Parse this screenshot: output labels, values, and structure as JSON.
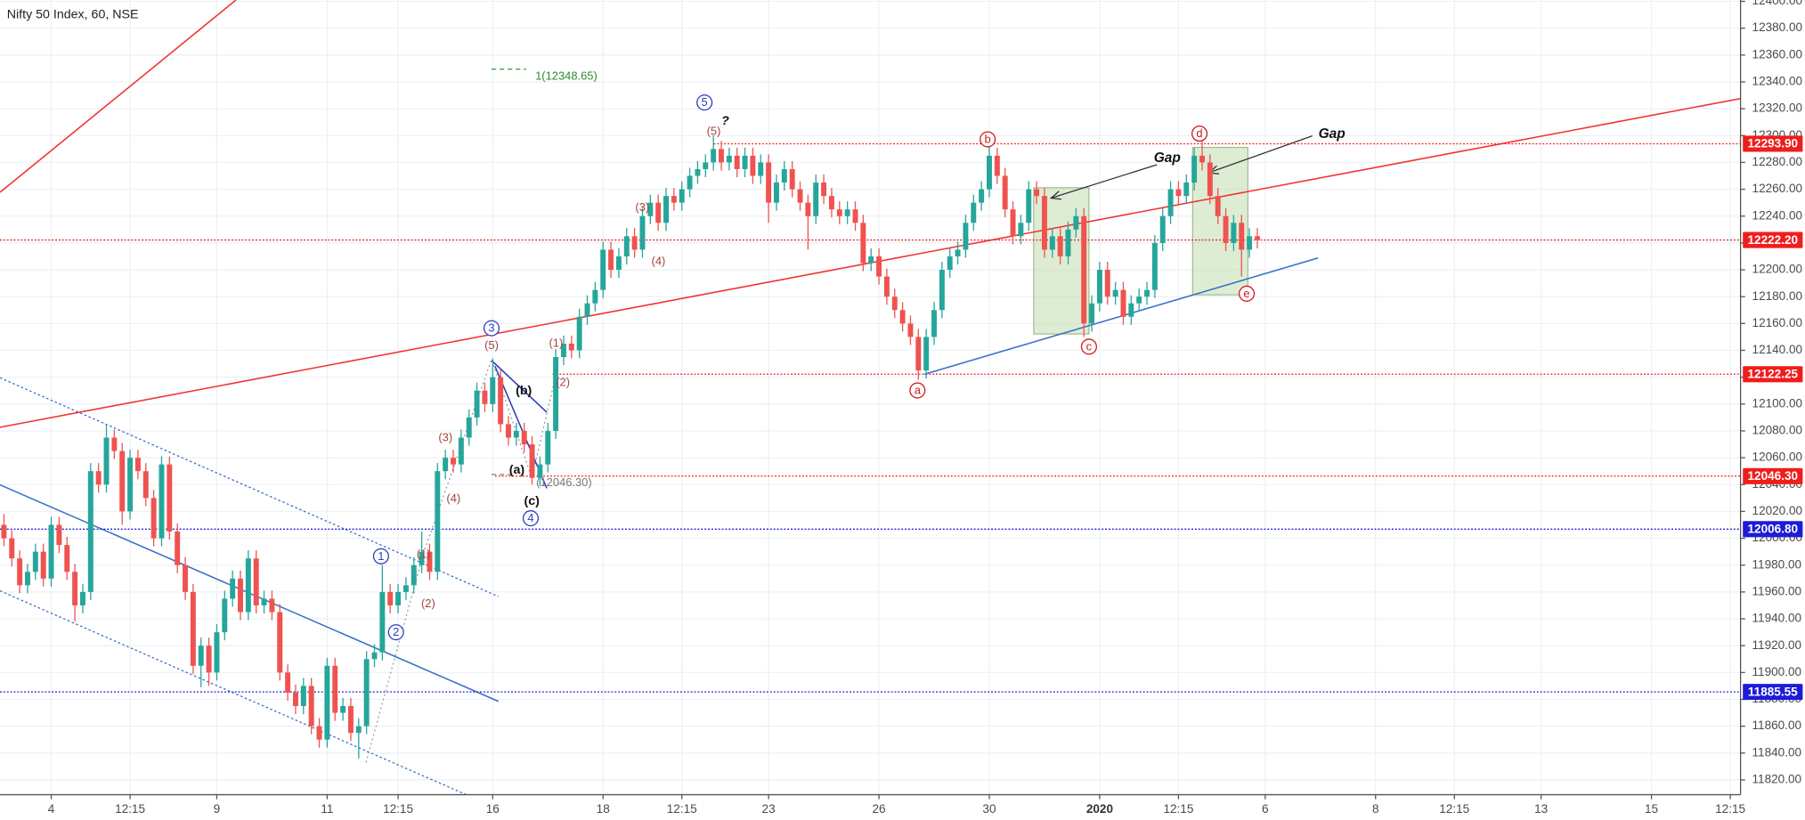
{
  "chart_data": {
    "type": "candlestick",
    "title": "Nifty 50 Index, 60, NSE",
    "up_color": "#26a69a",
    "down_color": "#ef5350",
    "grid": true,
    "xlim": [
      -0.5,
      220.3
    ],
    "xticks": [
      {
        "value": 6,
        "label": "4"
      },
      {
        "value": 16,
        "label": "12:15"
      },
      {
        "value": 27,
        "label": "9"
      },
      {
        "value": 41,
        "label": "11"
      },
      {
        "value": 50,
        "label": "12:15"
      },
      {
        "value": 62,
        "label": "16"
      },
      {
        "value": 76,
        "label": "18"
      },
      {
        "value": 86,
        "label": "12:15"
      },
      {
        "value": 97,
        "label": "23"
      },
      {
        "value": 111,
        "label": "26"
      },
      {
        "value": 125,
        "label": "30"
      },
      {
        "value": 139,
        "label": "2020"
      },
      {
        "value": 149,
        "label": "12:15"
      },
      {
        "value": 160,
        "label": "6"
      },
      {
        "value": 174,
        "label": "8"
      },
      {
        "value": 184,
        "label": "12:15"
      },
      {
        "value": 195,
        "label": "13"
      },
      {
        "value": 209,
        "label": "15"
      },
      {
        "value": 219,
        "label": "12:15"
      }
    ],
    "ylim": [
      11809,
      12401
    ],
    "yticks": [
      {
        "value": 11820,
        "label": "11820.00"
      },
      {
        "value": 11840,
        "label": "11840.00"
      },
      {
        "value": 11860,
        "label": "11860.00"
      },
      {
        "value": 11880,
        "label": "11880.00"
      },
      {
        "value": 11900,
        "label": "11900.00"
      },
      {
        "value": 11920,
        "label": "11920.00"
      },
      {
        "value": 11940,
        "label": "11940.00"
      },
      {
        "value": 11960,
        "label": "11960.00"
      },
      {
        "value": 11980,
        "label": "11980.00"
      },
      {
        "value": 12000,
        "label": "12000.00"
      },
      {
        "value": 12020,
        "label": "12020.00"
      },
      {
        "value": 12040,
        "label": "12040.00"
      },
      {
        "value": 12060,
        "label": "12060.00"
      },
      {
        "value": 12080,
        "label": "12080.00"
      },
      {
        "value": 12100,
        "label": "12100.00"
      },
      {
        "value": 12120,
        "label": "12120.00"
      },
      {
        "value": 12140,
        "label": "12140.00"
      },
      {
        "value": 12160,
        "label": "12160.00"
      },
      {
        "value": 12180,
        "label": "12180.00"
      },
      {
        "value": 12200,
        "label": "12200.00"
      },
      {
        "value": 12220,
        "label": "12220.00"
      },
      {
        "value": 12240,
        "label": "12240.00"
      },
      {
        "value": 12260,
        "label": "12260.00"
      },
      {
        "value": 12280,
        "label": "12280.00"
      },
      {
        "value": 12300,
        "label": "12300.00"
      },
      {
        "value": 12320,
        "label": "12320.00"
      },
      {
        "value": 12340,
        "label": "12340.00"
      },
      {
        "value": 12360,
        "label": "12360.00"
      },
      {
        "value": 12380,
        "label": "12380.00"
      },
      {
        "value": 12400,
        "label": "12400.00"
      }
    ],
    "levels": [
      {
        "value": 12293.9,
        "label": "12293.90",
        "color": "#f01d1d"
      },
      {
        "value": 12222.2,
        "label": "12222.20",
        "color": "#f01d1d"
      },
      {
        "value": 12122.25,
        "label": "12122.25",
        "color": "#f01d1d"
      },
      {
        "value": 12046.3,
        "label": "12046.30",
        "color": "#f01d1d"
      },
      {
        "value": 12006.8,
        "label": "12006.80",
        "color": "#1c1cd8"
      },
      {
        "value": 11885.55,
        "label": "11885.55",
        "color": "#1c1cd8"
      }
    ],
    "annotations": [
      "1(12348.65)",
      "5",
      "?",
      "(5)",
      "(3)",
      "(4)",
      "3",
      "(5)",
      "(1)",
      "(2)",
      "(b)",
      "(3)",
      "(4)",
      "(a)",
      "(12046.30)",
      "(c)",
      "4",
      "1",
      "(1)",
      "2",
      "(2)",
      "a",
      "b",
      "c",
      "d",
      "e",
      "Gap",
      "Gap"
    ],
    "ohlc": [
      [
        12010,
        12018,
        11994,
        12000
      ],
      [
        12000,
        12006,
        11979,
        11985
      ],
      [
        11985,
        11991,
        11959,
        11965
      ],
      [
        11965,
        11981,
        11959,
        11975
      ],
      [
        11975,
        11996,
        11969,
        11990
      ],
      [
        11990,
        11996,
        11964,
        11970
      ],
      [
        11970,
        12016,
        11964,
        12010
      ],
      [
        12010,
        12016,
        11989,
        11995
      ],
      [
        11995,
        12001,
        11969,
        11975
      ],
      [
        11975,
        11981,
        11938,
        11950
      ],
      [
        11950,
        11966,
        11944,
        11960
      ],
      [
        11960,
        12056,
        11954,
        12050
      ],
      [
        12050,
        12056,
        12034,
        12040
      ],
      [
        12040,
        12085,
        12034,
        12075
      ],
      [
        12075,
        12081,
        12059,
        12065
      ],
      [
        12065,
        12071,
        12010,
        12020
      ],
      [
        12020,
        12066,
        12014,
        12060
      ],
      [
        12060,
        12066,
        12044,
        12050
      ],
      [
        12050,
        12056,
        12024,
        12030
      ],
      [
        12030,
        12036,
        11994,
        12000
      ],
      [
        12000,
        12061,
        11994,
        12055
      ],
      [
        12055,
        12061,
        11999,
        12005
      ],
      [
        12005,
        12011,
        11974,
        11980
      ],
      [
        11980,
        11986,
        11954,
        11960
      ],
      [
        11960,
        11966,
        11899,
        11905
      ],
      [
        11905,
        11926,
        11889,
        11920
      ],
      [
        11920,
        11926,
        11890,
        11900
      ],
      [
        11900,
        11936,
        11894,
        11930
      ],
      [
        11930,
        11961,
        11924,
        11955
      ],
      [
        11955,
        11976,
        11949,
        11970
      ],
      [
        11970,
        11976,
        11939,
        11945
      ],
      [
        11945,
        11991,
        11939,
        11985
      ],
      [
        11985,
        11991,
        11944,
        11950
      ],
      [
        11950,
        11961,
        11944,
        11955
      ],
      [
        11955,
        11961,
        11939,
        11945
      ],
      [
        11945,
        11951,
        11894,
        11900
      ],
      [
        11900,
        11906,
        11879,
        11885
      ],
      [
        11885,
        11891,
        11869,
        11875
      ],
      [
        11875,
        11896,
        11869,
        11890
      ],
      [
        11890,
        11896,
        11854,
        11860
      ],
      [
        11860,
        11866,
        11844,
        11850
      ],
      [
        11850,
        11911,
        11844,
        11905
      ],
      [
        11905,
        11911,
        11864,
        11870
      ],
      [
        11870,
        11881,
        11864,
        11875
      ],
      [
        11875,
        11881,
        11849,
        11855
      ],
      [
        11855,
        11866,
        11836,
        11860
      ],
      [
        11860,
        11916,
        11854,
        11910
      ],
      [
        11910,
        11921,
        11904,
        11915
      ],
      [
        11915,
        11980,
        11909,
        11960
      ],
      [
        11960,
        11966,
        11944,
        11950
      ],
      [
        11950,
        11966,
        11944,
        11960
      ],
      [
        11960,
        11971,
        11954,
        11965
      ],
      [
        11965,
        11986,
        11959,
        11980
      ],
      [
        11980,
        12005,
        11974,
        11990
      ],
      [
        11990,
        11996,
        11969,
        11975
      ],
      [
        11975,
        12056,
        11969,
        12050
      ],
      [
        12050,
        12066,
        12044,
        12060
      ],
      [
        12060,
        12066,
        12049,
        12055
      ],
      [
        12055,
        12081,
        12049,
        12075
      ],
      [
        12075,
        12096,
        12069,
        12090
      ],
      [
        12090,
        12116,
        12084,
        12110
      ],
      [
        12110,
        12116,
        12094,
        12100
      ],
      [
        12100,
        12134,
        12094,
        12120
      ],
      [
        12120,
        12126,
        12079,
        12085
      ],
      [
        12085,
        12091,
        12069,
        12075
      ],
      [
        12075,
        12086,
        12069,
        12080
      ],
      [
        12080,
        12086,
        12064,
        12070
      ],
      [
        12070,
        12076,
        12040,
        12045
      ],
      [
        12045,
        12061,
        12039,
        12055
      ],
      [
        12055,
        12086,
        12049,
        12080
      ],
      [
        12080,
        12141,
        12074,
        12135
      ],
      [
        12135,
        12151,
        12129,
        12145
      ],
      [
        12145,
        12151,
        12134,
        12140
      ],
      [
        12140,
        12171,
        12134,
        12165
      ],
      [
        12165,
        12181,
        12159,
        12175
      ],
      [
        12175,
        12191,
        12169,
        12185
      ],
      [
        12185,
        12221,
        12179,
        12215
      ],
      [
        12215,
        12221,
        12194,
        12200
      ],
      [
        12200,
        12216,
        12194,
        12210
      ],
      [
        12210,
        12231,
        12204,
        12225
      ],
      [
        12225,
        12231,
        12209,
        12215
      ],
      [
        12215,
        12246,
        12209,
        12240
      ],
      [
        12240,
        12256,
        12234,
        12250
      ],
      [
        12250,
        12256,
        12229,
        12235
      ],
      [
        12235,
        12261,
        12229,
        12255
      ],
      [
        12255,
        12261,
        12244,
        12250
      ],
      [
        12250,
        12266,
        12244,
        12260
      ],
      [
        12260,
        12276,
        12254,
        12270
      ],
      [
        12270,
        12281,
        12264,
        12275
      ],
      [
        12275,
        12286,
        12269,
        12280
      ],
      [
        12280,
        12300,
        12274,
        12290
      ],
      [
        12290,
        12296,
        12274,
        12280
      ],
      [
        12280,
        12291,
        12274,
        12285
      ],
      [
        12285,
        12291,
        12269,
        12275
      ],
      [
        12275,
        12291,
        12269,
        12285
      ],
      [
        12285,
        12291,
        12264,
        12270
      ],
      [
        12270,
        12286,
        12264,
        12280
      ],
      [
        12280,
        12286,
        12235,
        12250
      ],
      [
        12250,
        12271,
        12244,
        12265
      ],
      [
        12265,
        12281,
        12259,
        12275
      ],
      [
        12275,
        12281,
        12254,
        12260
      ],
      [
        12260,
        12266,
        12244,
        12250
      ],
      [
        12250,
        12256,
        12215,
        12240
      ],
      [
        12240,
        12271,
        12234,
        12265
      ],
      [
        12265,
        12271,
        12249,
        12255
      ],
      [
        12255,
        12261,
        12239,
        12245
      ],
      [
        12245,
        12251,
        12234,
        12240
      ],
      [
        12240,
        12251,
        12234,
        12245
      ],
      [
        12245,
        12251,
        12229,
        12235
      ],
      [
        12235,
        12241,
        12199,
        12205
      ],
      [
        12205,
        12216,
        12199,
        12210
      ],
      [
        12210,
        12216,
        12189,
        12195
      ],
      [
        12195,
        12201,
        12174,
        12180
      ],
      [
        12180,
        12186,
        12164,
        12170
      ],
      [
        12170,
        12176,
        12154,
        12160
      ],
      [
        12160,
        12166,
        12144,
        12150
      ],
      [
        12150,
        12156,
        12118,
        12125
      ],
      [
        12125,
        12156,
        12119,
        12150
      ],
      [
        12150,
        12176,
        12144,
        12170
      ],
      [
        12170,
        12206,
        12164,
        12200
      ],
      [
        12200,
        12216,
        12194,
        12210
      ],
      [
        12210,
        12221,
        12204,
        12215
      ],
      [
        12215,
        12241,
        12209,
        12235
      ],
      [
        12235,
        12256,
        12229,
        12250
      ],
      [
        12250,
        12266,
        12244,
        12260
      ],
      [
        12260,
        12300,
        12254,
        12285
      ],
      [
        12285,
        12291,
        12264,
        12270
      ],
      [
        12270,
        12276,
        12239,
        12245
      ],
      [
        12245,
        12251,
        12219,
        12225
      ],
      [
        12225,
        12241,
        12219,
        12235
      ],
      [
        12235,
        12266,
        12229,
        12260
      ],
      [
        12260,
        12266,
        12249,
        12255
      ],
      [
        12255,
        12261,
        12209,
        12215
      ],
      [
        12215,
        12231,
        12209,
        12225
      ],
      [
        12225,
        12231,
        12204,
        12210
      ],
      [
        12210,
        12236,
        12204,
        12230
      ],
      [
        12230,
        12246,
        12224,
        12240
      ],
      [
        12240,
        12246,
        12150,
        12160
      ],
      [
        12160,
        12181,
        12154,
        12175
      ],
      [
        12175,
        12206,
        12169,
        12200
      ],
      [
        12200,
        12206,
        12174,
        12180
      ],
      [
        12180,
        12191,
        12174,
        12185
      ],
      [
        12185,
        12191,
        12159,
        12165
      ],
      [
        12165,
        12181,
        12159,
        12175
      ],
      [
        12175,
        12186,
        12169,
        12180
      ],
      [
        12180,
        12191,
        12174,
        12185
      ],
      [
        12185,
        12226,
        12179,
        12220
      ],
      [
        12220,
        12246,
        12214,
        12240
      ],
      [
        12240,
        12266,
        12234,
        12260
      ],
      [
        12260,
        12266,
        12249,
        12255
      ],
      [
        12255,
        12271,
        12249,
        12265
      ],
      [
        12265,
        12291,
        12259,
        12285
      ],
      [
        12285,
        12296,
        12274,
        12280
      ],
      [
        12280,
        12286,
        12249,
        12255
      ],
      [
        12255,
        12261,
        12234,
        12240
      ],
      [
        12240,
        12246,
        12214,
        12220
      ],
      [
        12220,
        12241,
        12214,
        12235
      ],
      [
        12235,
        12241,
        12195,
        12215
      ],
      [
        12215,
        12231,
        12209,
        12225
      ],
      [
        12225,
        12231,
        12216,
        12222.2
      ]
    ]
  }
}
